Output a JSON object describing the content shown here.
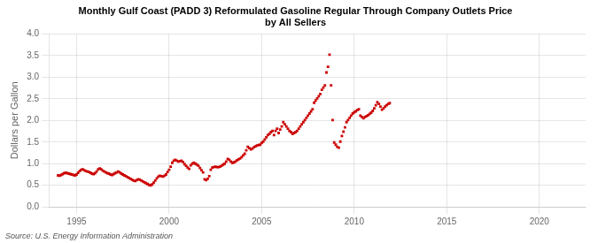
{
  "chart_data": {
    "type": "scatter",
    "title": "Monthly Gulf Coast (PADD 3) Reformulated Gasoline Regular Through Company Outlets Price\nby All Sellers",
    "ylabel": "Dollars per Gallon",
    "source": "Source: U.S. Energy Information Administration",
    "color": "#cc0000",
    "marker": "square",
    "grid": true,
    "xlim": [
      1993.5,
      2022.5
    ],
    "ylim": [
      0,
      4
    ],
    "xticks": [
      1995,
      2000,
      2005,
      2010,
      2015,
      2020
    ],
    "yticks": [
      {
        "value": 0,
        "label": "0.0"
      },
      0.5,
      {
        "value": 1,
        "label": "1.0"
      },
      1.5,
      {
        "value": 2,
        "label": "2.0"
      },
      2.5,
      {
        "value": 3,
        "label": "3.0"
      },
      3.5,
      {
        "value": 4,
        "label": "4.0"
      }
    ],
    "x": [
      1994,
      1994.0833333333333,
      1994.1666666666667,
      1994.25,
      1994.3333333333333,
      1994.4166666666667,
      1994.5,
      1994.5833333333333,
      1994.6666666666667,
      1994.75,
      1994.8333333333333,
      1994.9166666666667,
      1995,
      1995.0833333333333,
      1995.1666666666667,
      1995.25,
      1995.3333333333333,
      1995.4166666666667,
      1995.5,
      1995.5833333333333,
      1995.6666666666667,
      1995.75,
      1995.8333333333333,
      1995.9166666666667,
      1996,
      1996.0833333333333,
      1996.1666666666667,
      1996.25,
      1996.3333333333333,
      1996.4166666666667,
      1996.5,
      1996.5833333333333,
      1996.6666666666667,
      1996.75,
      1996.8333333333333,
      1996.9166666666667,
      1997,
      1997.0833333333333,
      1997.1666666666667,
      1997.25,
      1997.3333333333333,
      1997.4166666666667,
      1997.5,
      1997.5833333333333,
      1997.6666666666667,
      1997.75,
      1997.8333333333333,
      1997.9166666666667,
      1998,
      1998.0833333333333,
      1998.1666666666667,
      1998.25,
      1998.3333333333333,
      1998.4166666666667,
      1998.5,
      1998.5833333333333,
      1998.6666666666667,
      1998.75,
      1998.8333333333333,
      1998.9166666666667,
      1999,
      1999.0833333333333,
      1999.1666666666667,
      1999.25,
      1999.3333333333333,
      1999.4166666666667,
      1999.5,
      1999.5833333333333,
      1999.6666666666667,
      1999.75,
      1999.8333333333333,
      1999.9166666666667,
      2000,
      2000.0833333333333,
      2000.1666666666667,
      2000.25,
      2000.3333333333333,
      2000.4166666666667,
      2000.5,
      2000.5833333333333,
      2000.6666666666667,
      2000.75,
      2000.8333333333333,
      2000.9166666666667,
      2001,
      2001.0833333333333,
      2001.1666666666667,
      2001.25,
      2001.3333333333333,
      2001.4166666666667,
      2001.5,
      2001.5833333333333,
      2001.6666666666667,
      2001.75,
      2001.8333333333333,
      2001.9166666666667,
      2002,
      2002.0833333333333,
      2002.1666666666667,
      2002.25,
      2002.3333333333333,
      2002.4166666666667,
      2002.5,
      2002.5833333333333,
      2002.6666666666667,
      2002.75,
      2002.8333333333333,
      2002.9166666666667,
      2003,
      2003.0833333333333,
      2003.1666666666667,
      2003.25,
      2003.3333333333333,
      2003.4166666666667,
      2003.5,
      2003.5833333333333,
      2003.6666666666667,
      2003.75,
      2003.8333333333333,
      2003.9166666666667,
      2004,
      2004.0833333333333,
      2004.1666666666667,
      2004.25,
      2004.3333333333333,
      2004.4166666666667,
      2004.5,
      2004.5833333333333,
      2004.6666666666667,
      2004.75,
      2004.8333333333333,
      2004.9166666666667,
      2005,
      2005.0833333333333,
      2005.1666666666667,
      2005.25,
      2005.3333333333333,
      2005.4166666666667,
      2005.5,
      2005.5833333333333,
      2005.6666666666667,
      2005.75,
      2005.8333333333333,
      2005.9166666666667,
      2006,
      2006.0833333333333,
      2006.1666666666667,
      2006.25,
      2006.3333333333333,
      2006.4166666666667,
      2006.5,
      2006.5833333333333,
      2006.6666666666667,
      2006.75,
      2006.8333333333333,
      2006.9166666666667,
      2007,
      2007.0833333333333,
      2007.1666666666667,
      2007.25,
      2007.3333333333333,
      2007.4166666666667,
      2007.5,
      2007.5833333333333,
      2007.6666666666667,
      2007.75,
      2007.8333333333333,
      2007.9166666666667,
      2008,
      2008.0833333333333,
      2008.1666666666667,
      2008.25,
      2008.3333333333333,
      2008.4166666666667,
      2008.5,
      2008.5833333333333,
      2008.6666666666667,
      2008.75,
      2008.8333333333333,
      2008.9166666666667,
      2009,
      2009.0833333333333,
      2009.1666666666667,
      2009.25,
      2009.3333333333333,
      2009.4166666666667,
      2009.5,
      2009.5833333333333,
      2009.6666666666667,
      2009.75,
      2009.8333333333333,
      2009.9166666666667,
      2010,
      2010.0833333333333,
      2010.1666666666667,
      2010.25,
      2010.3333333333333,
      2010.4166666666667,
      2010.5,
      2010.5833333333333,
      2010.6666666666667,
      2010.75,
      2010.8333333333333,
      2010.9166666666667,
      2011,
      2011.0833333333333,
      2011.1666666666667,
      2011.25,
      2011.3333333333333,
      2011.4166666666667,
      2011.5,
      2011.5833333333333,
      2011.6666666666667,
      2011.75,
      2011.8333333333333,
      2011.9166666666667
    ],
    "values": [
      0.73,
      0.72,
      0.74,
      0.76,
      0.78,
      0.79,
      0.78,
      0.77,
      0.76,
      0.75,
      0.74,
      0.73,
      0.75,
      0.79,
      0.83,
      0.86,
      0.87,
      0.85,
      0.83,
      0.82,
      0.81,
      0.79,
      0.77,
      0.76,
      0.78,
      0.82,
      0.87,
      0.89,
      0.87,
      0.84,
      0.82,
      0.8,
      0.78,
      0.77,
      0.75,
      0.74,
      0.76,
      0.78,
      0.8,
      0.82,
      0.8,
      0.77,
      0.75,
      0.73,
      0.71,
      0.69,
      0.67,
      0.65,
      0.63,
      0.61,
      0.6,
      0.62,
      0.64,
      0.63,
      0.61,
      0.59,
      0.57,
      0.55,
      0.53,
      0.51,
      0.5,
      0.52,
      0.56,
      0.61,
      0.66,
      0.7,
      0.72,
      0.71,
      0.7,
      0.72,
      0.75,
      0.81,
      0.86,
      0.93,
      1.02,
      1.07,
      1.09,
      1.07,
      1.05,
      1.06,
      1.07,
      1.04,
      0.99,
      0.95,
      0.91,
      0.88,
      0.96,
      1.0,
      1.02,
      1.0,
      0.98,
      0.95,
      0.9,
      0.85,
      0.8,
      0.64,
      0.62,
      0.65,
      0.71,
      0.86,
      0.91,
      0.92,
      0.93,
      0.92,
      0.92,
      0.93,
      0.95,
      0.98,
      1.0,
      1.05,
      1.11,
      1.09,
      1.05,
      1.02,
      1.03,
      1.05,
      1.08,
      1.1,
      1.12,
      1.15,
      1.19,
      1.23,
      1.31,
      1.39,
      1.36,
      1.33,
      1.35,
      1.38,
      1.4,
      1.42,
      1.43,
      1.44,
      1.48,
      1.51,
      1.56,
      1.61,
      1.66,
      1.69,
      1.73,
      1.76,
      1.66,
      1.76,
      1.81,
      1.71,
      1.79,
      1.86,
      1.96,
      1.91,
      1.86,
      1.81,
      1.76,
      1.73,
      1.69,
      1.71,
      1.73,
      1.76,
      1.81,
      1.86,
      1.91,
      1.96,
      2.01,
      2.06,
      2.11,
      2.16,
      2.21,
      2.26,
      2.41,
      2.46,
      2.51,
      2.56,
      2.61,
      2.71,
      2.76,
      2.81,
      3.11,
      3.24,
      3.52,
      2.81,
      2.01,
      1.49,
      1.44,
      1.39,
      1.37,
      1.51,
      1.64,
      1.74,
      1.84,
      1.96,
      2.01,
      2.06,
      2.11,
      2.16,
      2.19,
      2.21,
      2.24,
      2.26,
      2.11,
      2.08,
      2.05,
      2.08,
      2.1,
      2.12,
      2.15,
      2.18,
      2.22,
      2.28,
      2.35,
      2.42,
      2.38,
      2.32,
      2.25,
      2.28,
      2.32,
      2.35,
      2.38,
      2.4
    ]
  }
}
